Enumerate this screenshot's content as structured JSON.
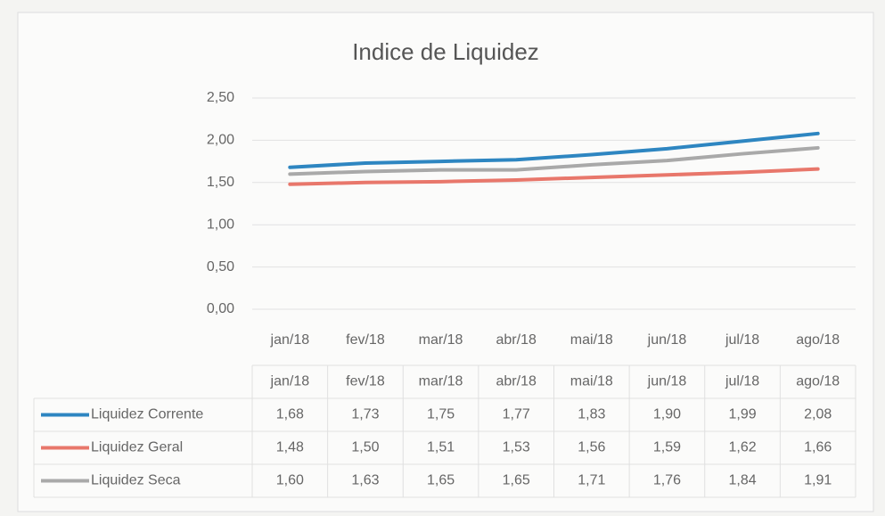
{
  "chart_data": {
    "type": "line",
    "title": "Indice de Liquidez",
    "categories": [
      "jan/18",
      "fev/18",
      "mar/18",
      "abr/18",
      "mai/18",
      "jun/18",
      "jul/18",
      "ago/18"
    ],
    "series": [
      {
        "name": "Liquidez Corrente",
        "color": "#2e86c1",
        "values": [
          1.68,
          1.73,
          1.75,
          1.77,
          1.83,
          1.9,
          1.99,
          2.08
        ],
        "value_labels": [
          "1,68",
          "1,73",
          "1,75",
          "1,77",
          "1,83",
          "1,90",
          "1,99",
          "2,08"
        ]
      },
      {
        "name": "Liquidez Geral",
        "color": "#e8776b",
        "values": [
          1.48,
          1.5,
          1.51,
          1.53,
          1.56,
          1.59,
          1.62,
          1.66
        ],
        "value_labels": [
          "1,48",
          "1,50",
          "1,51",
          "1,53",
          "1,56",
          "1,59",
          "1,62",
          "1,66"
        ]
      },
      {
        "name": "Liquidez Seca",
        "color": "#a9a9a9",
        "values": [
          1.6,
          1.63,
          1.65,
          1.65,
          1.71,
          1.76,
          1.84,
          1.91
        ],
        "value_labels": [
          "1,60",
          "1,63",
          "1,65",
          "1,65",
          "1,71",
          "1,76",
          "1,84",
          "1,91"
        ]
      }
    ],
    "ylim": [
      0,
      2.5
    ],
    "yticks": [
      {
        "value": 0,
        "label": "0,00"
      },
      {
        "value": 0.5,
        "label": "0,50"
      },
      {
        "value": 1,
        "label": "1,00"
      },
      {
        "value": 1.5,
        "label": "1,50"
      },
      {
        "value": 2,
        "label": "2,00"
      },
      {
        "value": 2.5,
        "label": "2,50"
      }
    ],
    "grid": true
  }
}
